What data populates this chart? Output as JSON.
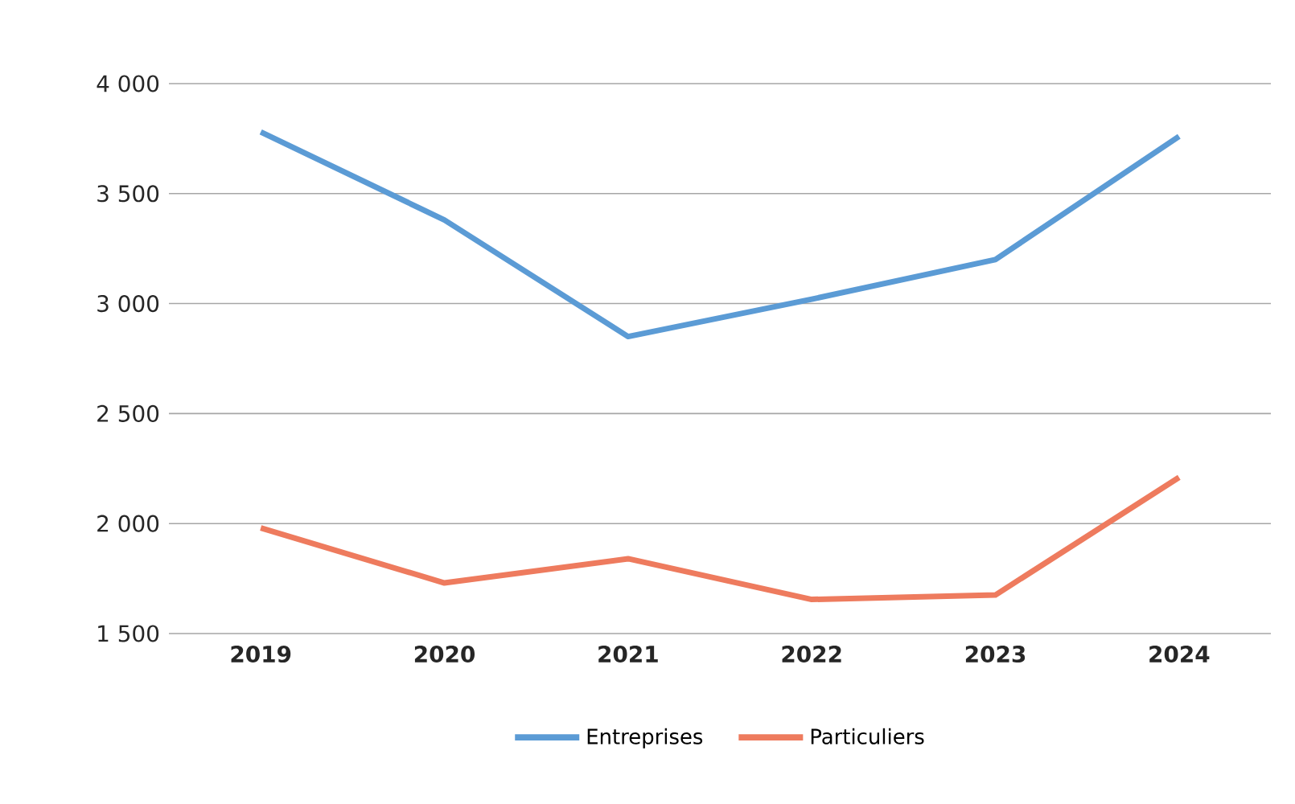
{
  "chart_data": {
    "type": "line",
    "categories": [
      "2019",
      "2020",
      "2021",
      "2022",
      "2023",
      "2024"
    ],
    "series": [
      {
        "name": "Entreprises",
        "color": "#5b9bd5",
        "values": [
          3780,
          3380,
          2850,
          3020,
          3200,
          3760
        ]
      },
      {
        "name": "Particuliers",
        "color": "#ee7b5e",
        "values": [
          1980,
          1730,
          1840,
          1655,
          1675,
          2210
        ]
      }
    ],
    "ylim": [
      1500,
      4000
    ],
    "yticks": [
      {
        "value": 1500,
        "label": "1 500"
      },
      {
        "value": 2000,
        "label": "2 000"
      },
      {
        "value": 2500,
        "label": "2 500"
      },
      {
        "value": 3000,
        "label": "3 000"
      },
      {
        "value": 3500,
        "label": "3 500"
      },
      {
        "value": 4000,
        "label": "4 000"
      }
    ],
    "grid": "y",
    "legend": "bottom",
    "marker": "none",
    "line_style": "solid"
  }
}
